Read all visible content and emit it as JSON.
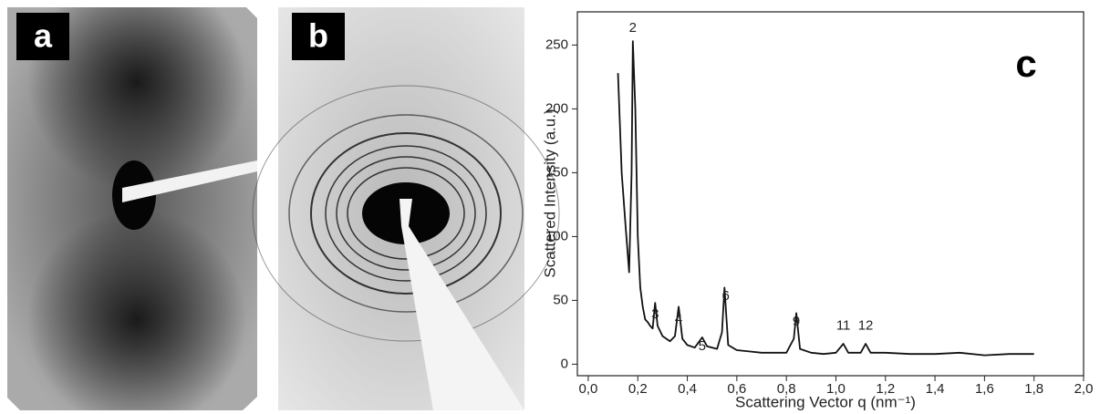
{
  "panels": [
    {
      "label": "a"
    },
    {
      "label": "b"
    }
  ],
  "chart_data": {
    "type": "line",
    "panel_label": "c",
    "x_label": "Scattering Vector q (nm⁻¹)",
    "y_label": "Scattered Intensity (a.u.)",
    "x": [
      0.12,
      0.135,
      0.15,
      0.165,
      0.175,
      0.18,
      0.19,
      0.2,
      0.21,
      0.22,
      0.23,
      0.24,
      0.25,
      0.26,
      0.27,
      0.28,
      0.3,
      0.33,
      0.35,
      0.365,
      0.38,
      0.4,
      0.43,
      0.46,
      0.48,
      0.52,
      0.54,
      0.55,
      0.565,
      0.6,
      0.65,
      0.7,
      0.75,
      0.8,
      0.83,
      0.84,
      0.855,
      0.9,
      0.95,
      1.0,
      1.03,
      1.05,
      1.1,
      1.12,
      1.14,
      1.2,
      1.3,
      1.4,
      1.5,
      1.6,
      1.7,
      1.8
    ],
    "values": [
      228,
      150,
      110,
      72,
      150,
      253,
      200,
      100,
      60,
      45,
      35,
      33,
      30,
      28,
      48,
      30,
      22,
      18,
      22,
      45,
      20,
      15,
      13,
      21,
      14,
      12,
      25,
      60,
      15,
      11,
      10,
      9,
      9,
      9,
      20,
      40,
      12,
      9,
      8,
      9,
      16,
      9,
      9,
      16,
      9,
      9,
      8,
      8,
      9,
      7,
      8,
      8
    ],
    "color": "#111111",
    "xlim": [
      -0.044,
      2.0
    ],
    "ylim": [
      -9,
      276
    ],
    "xticks": [
      {
        "value": 0,
        "label": "0,0"
      },
      {
        "value": 0.2,
        "label": "0,2"
      },
      {
        "value": 0.4,
        "label": "0,4"
      },
      {
        "value": 0.6,
        "label": "0,6"
      },
      {
        "value": 0.8,
        "label": "0,8"
      },
      {
        "value": 1.0,
        "label": "1,0"
      },
      {
        "value": 1.2,
        "label": "1,2"
      },
      {
        "value": 1.4,
        "label": "1,4"
      },
      {
        "value": 1.6,
        "label": "1,6"
      },
      {
        "value": 1.8,
        "label": "1,8"
      },
      {
        "value": 2.0,
        "label": "2,0"
      }
    ],
    "yticks": [
      0,
      50,
      100,
      150,
      200,
      250
    ],
    "annotations": [
      {
        "text": "2",
        "x": 0.18,
        "y": 263
      },
      {
        "text": "3",
        "x": 0.27,
        "y": 39
      },
      {
        "text": "4",
        "x": 0.365,
        "y": 35
      },
      {
        "text": "5",
        "x": 0.46,
        "y": 14
      },
      {
        "text": "6",
        "x": 0.555,
        "y": 53
      },
      {
        "text": "9",
        "x": 0.84,
        "y": 33
      },
      {
        "text": "11",
        "x": 1.03,
        "y": 30
      },
      {
        "text": "12",
        "x": 1.12,
        "y": 30
      }
    ]
  }
}
